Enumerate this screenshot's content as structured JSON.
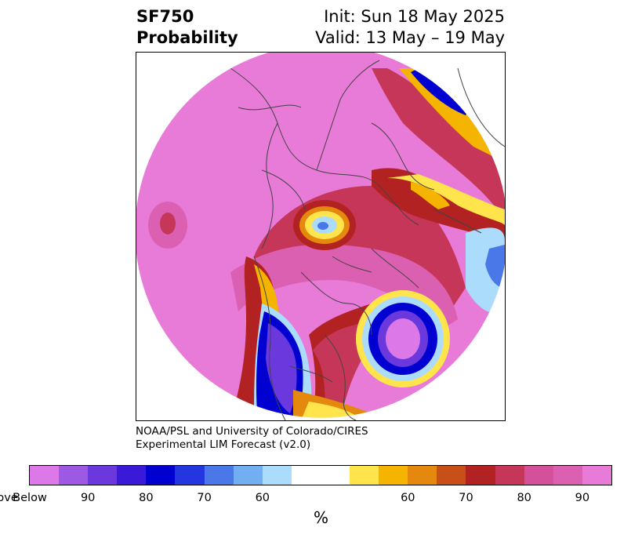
{
  "header": {
    "product_line1": "SF750",
    "product_line2": "Probability",
    "init_line": "Init: Sun 18 May 2025",
    "valid_line": "Valid: 13 May – 19 May"
  },
  "credit": {
    "line1": "NOAA/PSL and University of Colorado/CIRES",
    "line2": "Experimental LIM Forecast (v2.0)"
  },
  "colorbar": {
    "unit_label": "%",
    "colors": [
      "#dc78e8",
      "#9d58e4",
      "#6a38dc",
      "#3a1ad8",
      "#0000d0",
      "#2336e0",
      "#4b78e8",
      "#72aef2",
      "#acdcfc",
      "#ffffff",
      "#ffe44c",
      "#f4b400",
      "#e4880e",
      "#c85018",
      "#b22222",
      "#c63658",
      "#d4509a",
      "#dc60b2",
      "#e87ad8"
    ],
    "tick_labels": [
      "Below",
      "90",
      "80",
      "70",
      "60",
      "60",
      "70",
      "80",
      "90",
      "Above"
    ]
  },
  "map_colors": {
    "above_max": "#e87ad8",
    "above_90": "#dc60b2",
    "above_80": "#c63658",
    "above_70": "#b22222",
    "above_60": "#e4880e",
    "neutral_warm": "#f4b400",
    "neutral_light": "#ffe44c",
    "below_60": "#acdcfc",
    "below_70": "#4b78e8",
    "below_80": "#0000d0",
    "below_90": "#6a38dc",
    "below_max": "#dc78e8"
  }
}
